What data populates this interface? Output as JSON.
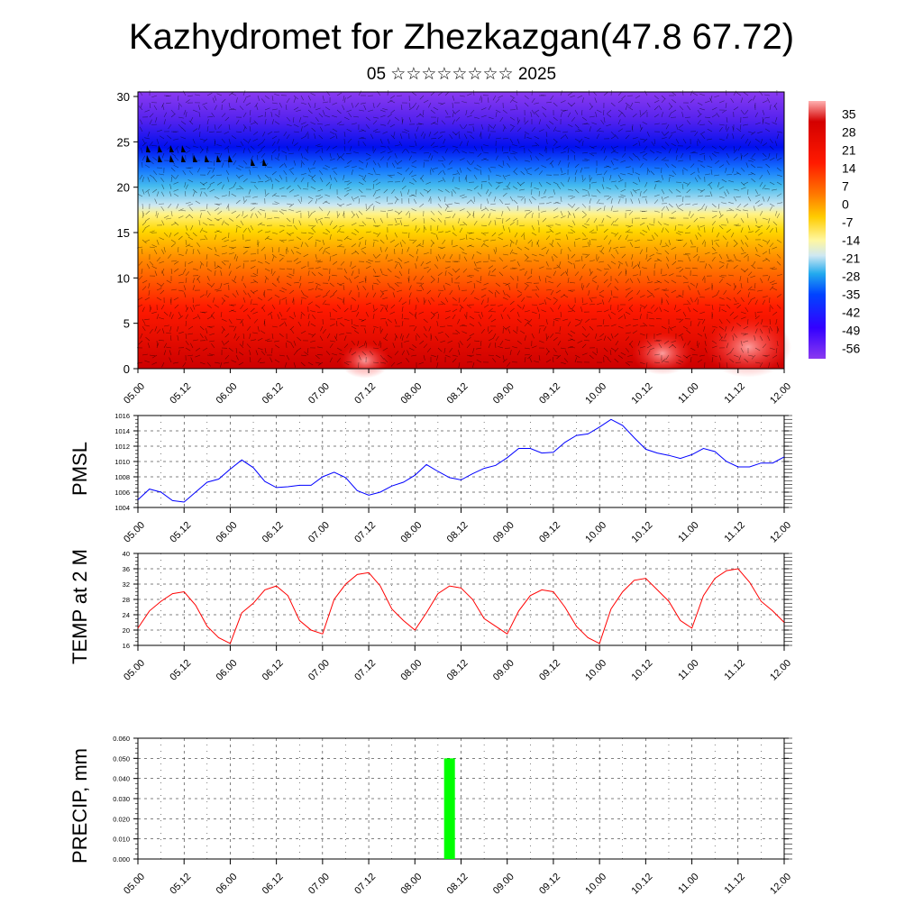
{
  "header": {
    "title": "Kazhydromet for Zhezkazgan(47.8 67.72)",
    "subtitle": "05 ☆☆☆☆☆☆☆☆ 2025"
  },
  "chart_data": [
    {
      "type": "heatmap",
      "title": "",
      "xlabel": "",
      "ylabel": "",
      "x_ticks": [
        "05.00",
        "05.12",
        "06.00",
        "06.12",
        "07.00",
        "07.12",
        "08.00",
        "08.12",
        "09.00",
        "09.12",
        "10.00",
        "10.12",
        "11.00",
        "11.12",
        "12.00"
      ],
      "y_ticks": [
        0,
        5,
        10,
        15,
        20,
        25,
        30
      ],
      "ylim": [
        0,
        30.5
      ],
      "colorbar": {
        "labels": [
          35,
          28,
          21,
          14,
          7,
          0,
          -7,
          -14,
          -21,
          -28,
          -35,
          -42,
          -49,
          -56
        ],
        "range": [
          -60,
          40
        ]
      },
      "overlay": "wind barbs"
    },
    {
      "type": "line",
      "ylabel": "PMSL",
      "ylim": [
        1004,
        1016
      ],
      "y_ticks": [
        1004,
        1006,
        1008,
        1010,
        1012,
        1014,
        1016
      ],
      "x_ticks": [
        "05.00",
        "05.12",
        "06.00",
        "06.12",
        "07.00",
        "07.12",
        "08.00",
        "08.12",
        "09.00",
        "09.12",
        "10.00",
        "10.12",
        "11.00",
        "11.12",
        "12.00"
      ],
      "x_hours": [
        0,
        3,
        6,
        9,
        12,
        15,
        18,
        21,
        24,
        27,
        30,
        33,
        36,
        39,
        42,
        45,
        48,
        51,
        54,
        57,
        60,
        63,
        66,
        69,
        72,
        75,
        78,
        81,
        84,
        87,
        90,
        93,
        96,
        99,
        102,
        105,
        108,
        111,
        114,
        117,
        120,
        123,
        126,
        129,
        132,
        135,
        138,
        141,
        144,
        147,
        150,
        153,
        156,
        159,
        162,
        165,
        168
      ],
      "values": [
        1005.0,
        1006.4,
        1006.0,
        1004.9,
        1004.7,
        1006.0,
        1007.3,
        1007.7,
        1009.0,
        1010.2,
        1009.2,
        1007.4,
        1006.6,
        1006.7,
        1006.9,
        1006.9,
        1008.0,
        1008.6,
        1007.9,
        1006.2,
        1005.6,
        1006.0,
        1006.8,
        1007.3,
        1008.2,
        1009.6,
        1008.7,
        1007.9,
        1007.6,
        1008.4,
        1009.1,
        1009.5,
        1010.5,
        1011.7,
        1011.7,
        1011.1,
        1011.2,
        1012.5,
        1013.4,
        1013.6,
        1014.5,
        1015.5,
        1014.7,
        1013.1,
        1011.6,
        1011.1,
        1010.8,
        1010.4,
        1010.9,
        1011.7,
        1011.3,
        1010.0,
        1009.3,
        1009.3,
        1009.8,
        1009.8,
        1010.6
      ],
      "color": "#0000ff"
    },
    {
      "type": "line",
      "ylabel": "TEMP at 2 M",
      "ylim": [
        16,
        40
      ],
      "y_ticks": [
        16,
        20,
        24,
        28,
        32,
        36,
        40
      ],
      "x_ticks": [
        "05.00",
        "05.12",
        "06.00",
        "06.12",
        "07.00",
        "07.12",
        "08.00",
        "08.12",
        "09.00",
        "09.12",
        "10.00",
        "10.12",
        "11.00",
        "11.12",
        "12.00"
      ],
      "x_hours": [
        0,
        3,
        6,
        9,
        12,
        15,
        18,
        21,
        24,
        27,
        30,
        33,
        36,
        39,
        42,
        45,
        48,
        51,
        54,
        57,
        60,
        63,
        66,
        69,
        72,
        75,
        78,
        81,
        84,
        87,
        90,
        93,
        96,
        99,
        102,
        105,
        108,
        111,
        114,
        117,
        120,
        123,
        126,
        129,
        132,
        135,
        138,
        141,
        144,
        147,
        150,
        153,
        156,
        159,
        162,
        165,
        168
      ],
      "values": [
        20.5,
        25.0,
        27.5,
        29.5,
        30.0,
        26.5,
        21.0,
        18.0,
        16.5,
        24.5,
        27.0,
        30.5,
        31.5,
        29.0,
        22.5,
        20.0,
        19.0,
        28.0,
        32.0,
        34.5,
        35.0,
        31.5,
        25.5,
        22.5,
        20.0,
        24.5,
        29.5,
        31.5,
        31.0,
        28.0,
        23.0,
        21.0,
        19.0,
        25.0,
        29.0,
        30.5,
        30.0,
        26.0,
        21.0,
        18.0,
        16.5,
        25.5,
        30.0,
        33.0,
        33.5,
        30.5,
        27.5,
        22.5,
        20.5,
        29.0,
        33.5,
        35.5,
        36.0,
        32.5,
        27.5,
        25.0,
        22.0
      ],
      "color": "#ff0000"
    },
    {
      "type": "bar",
      "ylabel": "PRECIP, mm",
      "ylim": [
        0,
        0.06
      ],
      "y_ticks": [
        "0.000",
        "0.010",
        "0.020",
        "0.030",
        "0.040",
        "0.050",
        "0.060"
      ],
      "x_ticks": [
        "05.00",
        "05.12",
        "06.00",
        "06.12",
        "07.00",
        "07.12",
        "08.00",
        "08.12",
        "09.00",
        "09.12",
        "10.00",
        "10.12",
        "11.00",
        "11.12",
        "12.00"
      ],
      "x_hours": [
        81
      ],
      "values": [
        0.05
      ],
      "color": "#00ff00"
    }
  ]
}
